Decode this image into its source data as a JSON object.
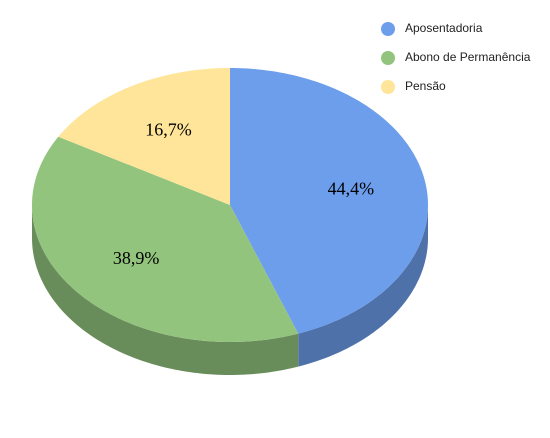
{
  "chart_data": {
    "type": "pie",
    "categories": [
      "Aposentadoria",
      "Abono de Permanência",
      "Pensão"
    ],
    "values": [
      44.4,
      38.9,
      16.7
    ],
    "value_labels": [
      "44,4%",
      "38,9%",
      "16,7%"
    ],
    "colors": [
      "#6d9eeb",
      "#93c47d",
      "#ffe599"
    ],
    "legend": "top-right"
  }
}
